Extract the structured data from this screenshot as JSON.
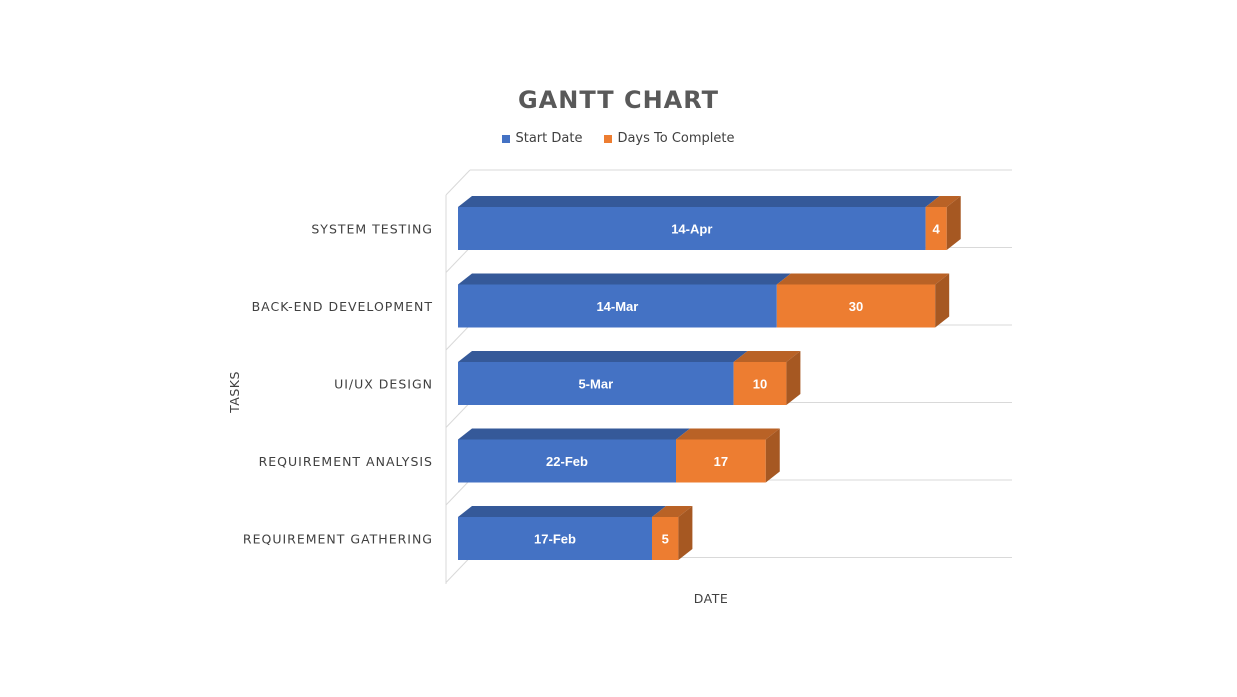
{
  "chart_data": {
    "type": "bar",
    "orientation": "horizontal-stacked-3d",
    "title": "GANTT CHART",
    "xlabel": "DATE",
    "ylabel": "TASKS",
    "legend_position": "top",
    "categories": [
      "SYSTEM TESTING",
      "BACK-END DEVELOPMENT",
      "UI/UX DESIGN",
      "REQUIREMENT ANALYSIS",
      "REQUIREMENT GATHERING"
    ],
    "series": [
      {
        "name": "Start Date",
        "color": "#4472C4",
        "values": [
          "2020-04-14",
          "2020-03-14",
          "2020-03-05",
          "2020-02-22",
          "2020-02-17"
        ],
        "labels": [
          "14-Apr",
          "14-Mar",
          "5-Mar",
          "22-Feb",
          "17-Feb"
        ]
      },
      {
        "name": "Days To Complete",
        "color": "#ED7D31",
        "values": [
          4,
          30,
          10,
          17,
          5
        ],
        "labels": [
          "4",
          "30",
          "10",
          "17",
          "5"
        ]
      }
    ]
  }
}
